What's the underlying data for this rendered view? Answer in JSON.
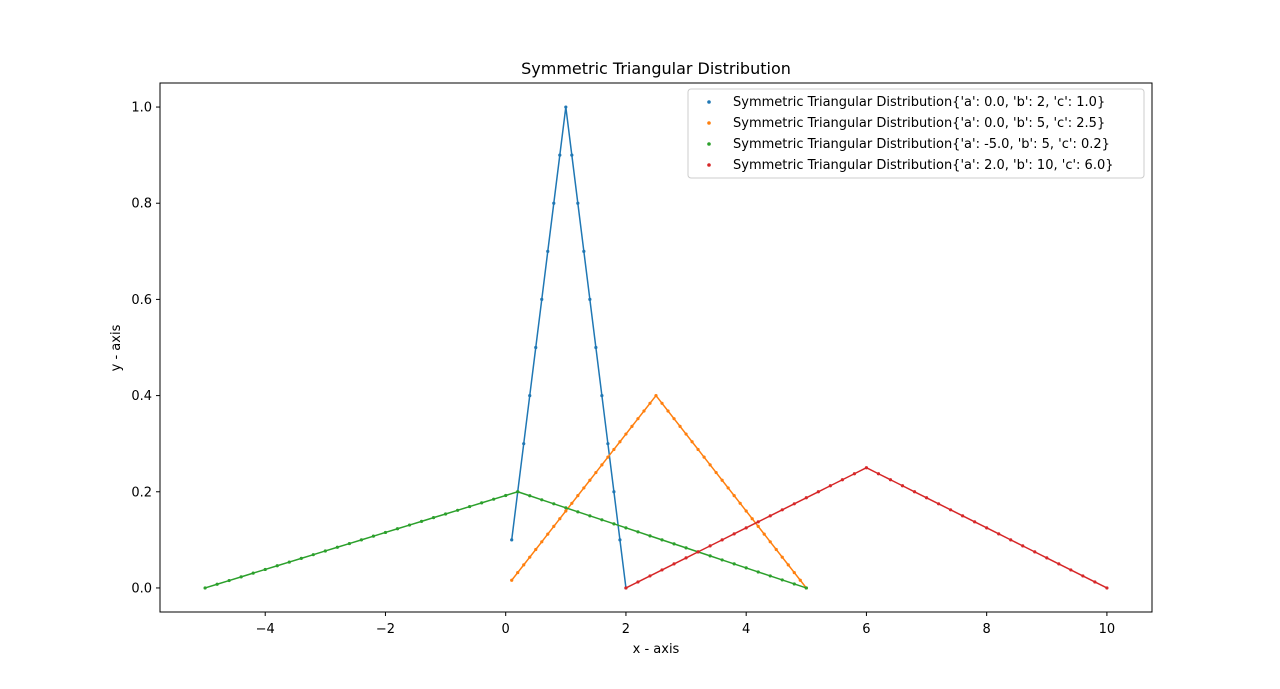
{
  "chart_data": {
    "type": "line",
    "title": "Symmetric Triangular Distribution",
    "xlabel": "x - axis",
    "ylabel": "y - axis",
    "xlim": [
      -5.75,
      10.75
    ],
    "ylim": [
      -0.05,
      1.05
    ],
    "xticks": [
      -4,
      -2,
      0,
      2,
      4,
      6,
      8,
      10
    ],
    "yticks": [
      0.0,
      0.2,
      0.4,
      0.6,
      0.8,
      1.0
    ],
    "xtick_labels": [
      "−4",
      "−2",
      "0",
      "2",
      "4",
      "6",
      "8",
      "10"
    ],
    "ytick_labels": [
      "0.0",
      "0.2",
      "0.4",
      "0.6",
      "0.8",
      "1.0"
    ],
    "grid": false,
    "legend_position": "top-right",
    "series": [
      {
        "name": "Symmetric Triangular Distribution{'a': 0.0, 'b': 2, 'c': 1.0}",
        "color": "#1f77b4",
        "a": 0.0,
        "b": 2,
        "c": 1.0,
        "x": [
          0.1,
          0.2,
          0.3,
          0.4,
          0.5,
          0.6,
          0.7,
          0.8,
          0.9,
          1.0,
          1.1,
          1.2,
          1.3,
          1.4,
          1.5,
          1.6,
          1.7,
          1.8,
          1.9,
          2.0
        ],
        "y": [
          0.1,
          0.2,
          0.3,
          0.4,
          0.5,
          0.6,
          0.7,
          0.8,
          0.9,
          1.0,
          0.9,
          0.8,
          0.7,
          0.6,
          0.5,
          0.4,
          0.3,
          0.2,
          0.1,
          0.0
        ]
      },
      {
        "name": "Symmetric Triangular Distribution{'a': 0.0, 'b': 5, 'c': 2.5}",
        "color": "#ff7f0e",
        "a": 0.0,
        "b": 5,
        "c": 2.5,
        "x": [
          0.1,
          0.2,
          0.3,
          0.4,
          0.5,
          0.6,
          0.7,
          0.8,
          0.9,
          1.0,
          1.1,
          1.2,
          1.3,
          1.4,
          1.5,
          1.6,
          1.7,
          1.8,
          1.9,
          2.0,
          2.1,
          2.2,
          2.3,
          2.4,
          2.5,
          2.6,
          2.7,
          2.8,
          2.9,
          3.0,
          3.1,
          3.2,
          3.3,
          3.4,
          3.5,
          3.6,
          3.7,
          3.8,
          3.9,
          4.0,
          4.1,
          4.2,
          4.3,
          4.4,
          4.5,
          4.6,
          4.7,
          4.8,
          4.9,
          5.0
        ],
        "y": [
          0.016,
          0.032,
          0.048,
          0.064,
          0.08,
          0.096,
          0.112,
          0.128,
          0.144,
          0.16,
          0.176,
          0.192,
          0.208,
          0.224,
          0.24,
          0.256,
          0.272,
          0.288,
          0.304,
          0.32,
          0.336,
          0.352,
          0.368,
          0.384,
          0.4,
          0.384,
          0.368,
          0.352,
          0.336,
          0.32,
          0.304,
          0.288,
          0.272,
          0.256,
          0.24,
          0.224,
          0.208,
          0.192,
          0.176,
          0.16,
          0.144,
          0.128,
          0.112,
          0.096,
          0.08,
          0.064,
          0.048,
          0.032,
          0.016,
          0.0
        ]
      },
      {
        "name": "Symmetric Triangular Distribution{'a': -5.0, 'b': 5, 'c': 0.2}",
        "color": "#2ca02c",
        "a": -5.0,
        "b": 5,
        "c": 0.2,
        "x": [
          -5.0,
          -4.8,
          -4.6,
          -4.4,
          -4.2,
          -4.0,
          -3.8,
          -3.6,
          -3.4,
          -3.2,
          -3.0,
          -2.8,
          -2.6,
          -2.4,
          -2.2,
          -2.0,
          -1.8,
          -1.6,
          -1.4,
          -1.2,
          -1.0,
          -0.8,
          -0.6,
          -0.4,
          -0.2,
          0.0,
          0.2,
          0.4,
          0.6,
          0.8,
          1.0,
          1.2,
          1.4,
          1.6,
          1.8,
          2.0,
          2.2,
          2.4,
          2.6,
          2.8,
          3.0,
          3.2,
          3.4,
          3.6,
          3.8,
          4.0,
          4.2,
          4.4,
          4.6,
          4.8,
          5.0
        ],
        "y": [
          0.0,
          0.0077,
          0.0154,
          0.0231,
          0.0308,
          0.0385,
          0.0462,
          0.0538,
          0.0615,
          0.0692,
          0.0769,
          0.0846,
          0.0923,
          0.1,
          0.1077,
          0.1154,
          0.1231,
          0.1308,
          0.1385,
          0.1462,
          0.1538,
          0.1615,
          0.1692,
          0.1769,
          0.1846,
          0.1923,
          0.2,
          0.1917,
          0.1833,
          0.175,
          0.1667,
          0.1583,
          0.15,
          0.1417,
          0.1333,
          0.125,
          0.1167,
          0.1083,
          0.1,
          0.0917,
          0.0833,
          0.075,
          0.0667,
          0.0583,
          0.05,
          0.0417,
          0.0333,
          0.025,
          0.0167,
          0.0083,
          0.0
        ]
      },
      {
        "name": "Symmetric Triangular Distribution{'a': 2.0, 'b': 10, 'c': 6.0}",
        "color": "#d62728",
        "a": 2.0,
        "b": 10,
        "c": 6.0,
        "x": [
          2.0,
          2.2,
          2.4,
          2.6,
          2.8,
          3.0,
          3.2,
          3.4,
          3.6,
          3.8,
          4.0,
          4.2,
          4.4,
          4.6,
          4.8,
          5.0,
          5.2,
          5.4,
          5.6,
          5.8,
          6.0,
          6.2,
          6.4,
          6.6,
          6.8,
          7.0,
          7.2,
          7.4,
          7.6,
          7.8,
          8.0,
          8.2,
          8.4,
          8.6,
          8.8,
          9.0,
          9.2,
          9.4,
          9.6,
          9.8,
          10.0
        ],
        "y": [
          0.0,
          0.0125,
          0.025,
          0.0375,
          0.05,
          0.0625,
          0.075,
          0.0875,
          0.1,
          0.1125,
          0.125,
          0.1375,
          0.15,
          0.1625,
          0.175,
          0.1875,
          0.2,
          0.2125,
          0.225,
          0.2375,
          0.25,
          0.2375,
          0.225,
          0.2125,
          0.2,
          0.1875,
          0.175,
          0.1625,
          0.15,
          0.1375,
          0.125,
          0.1125,
          0.1,
          0.0875,
          0.075,
          0.0625,
          0.05,
          0.0375,
          0.025,
          0.0125,
          0.0
        ]
      }
    ]
  }
}
